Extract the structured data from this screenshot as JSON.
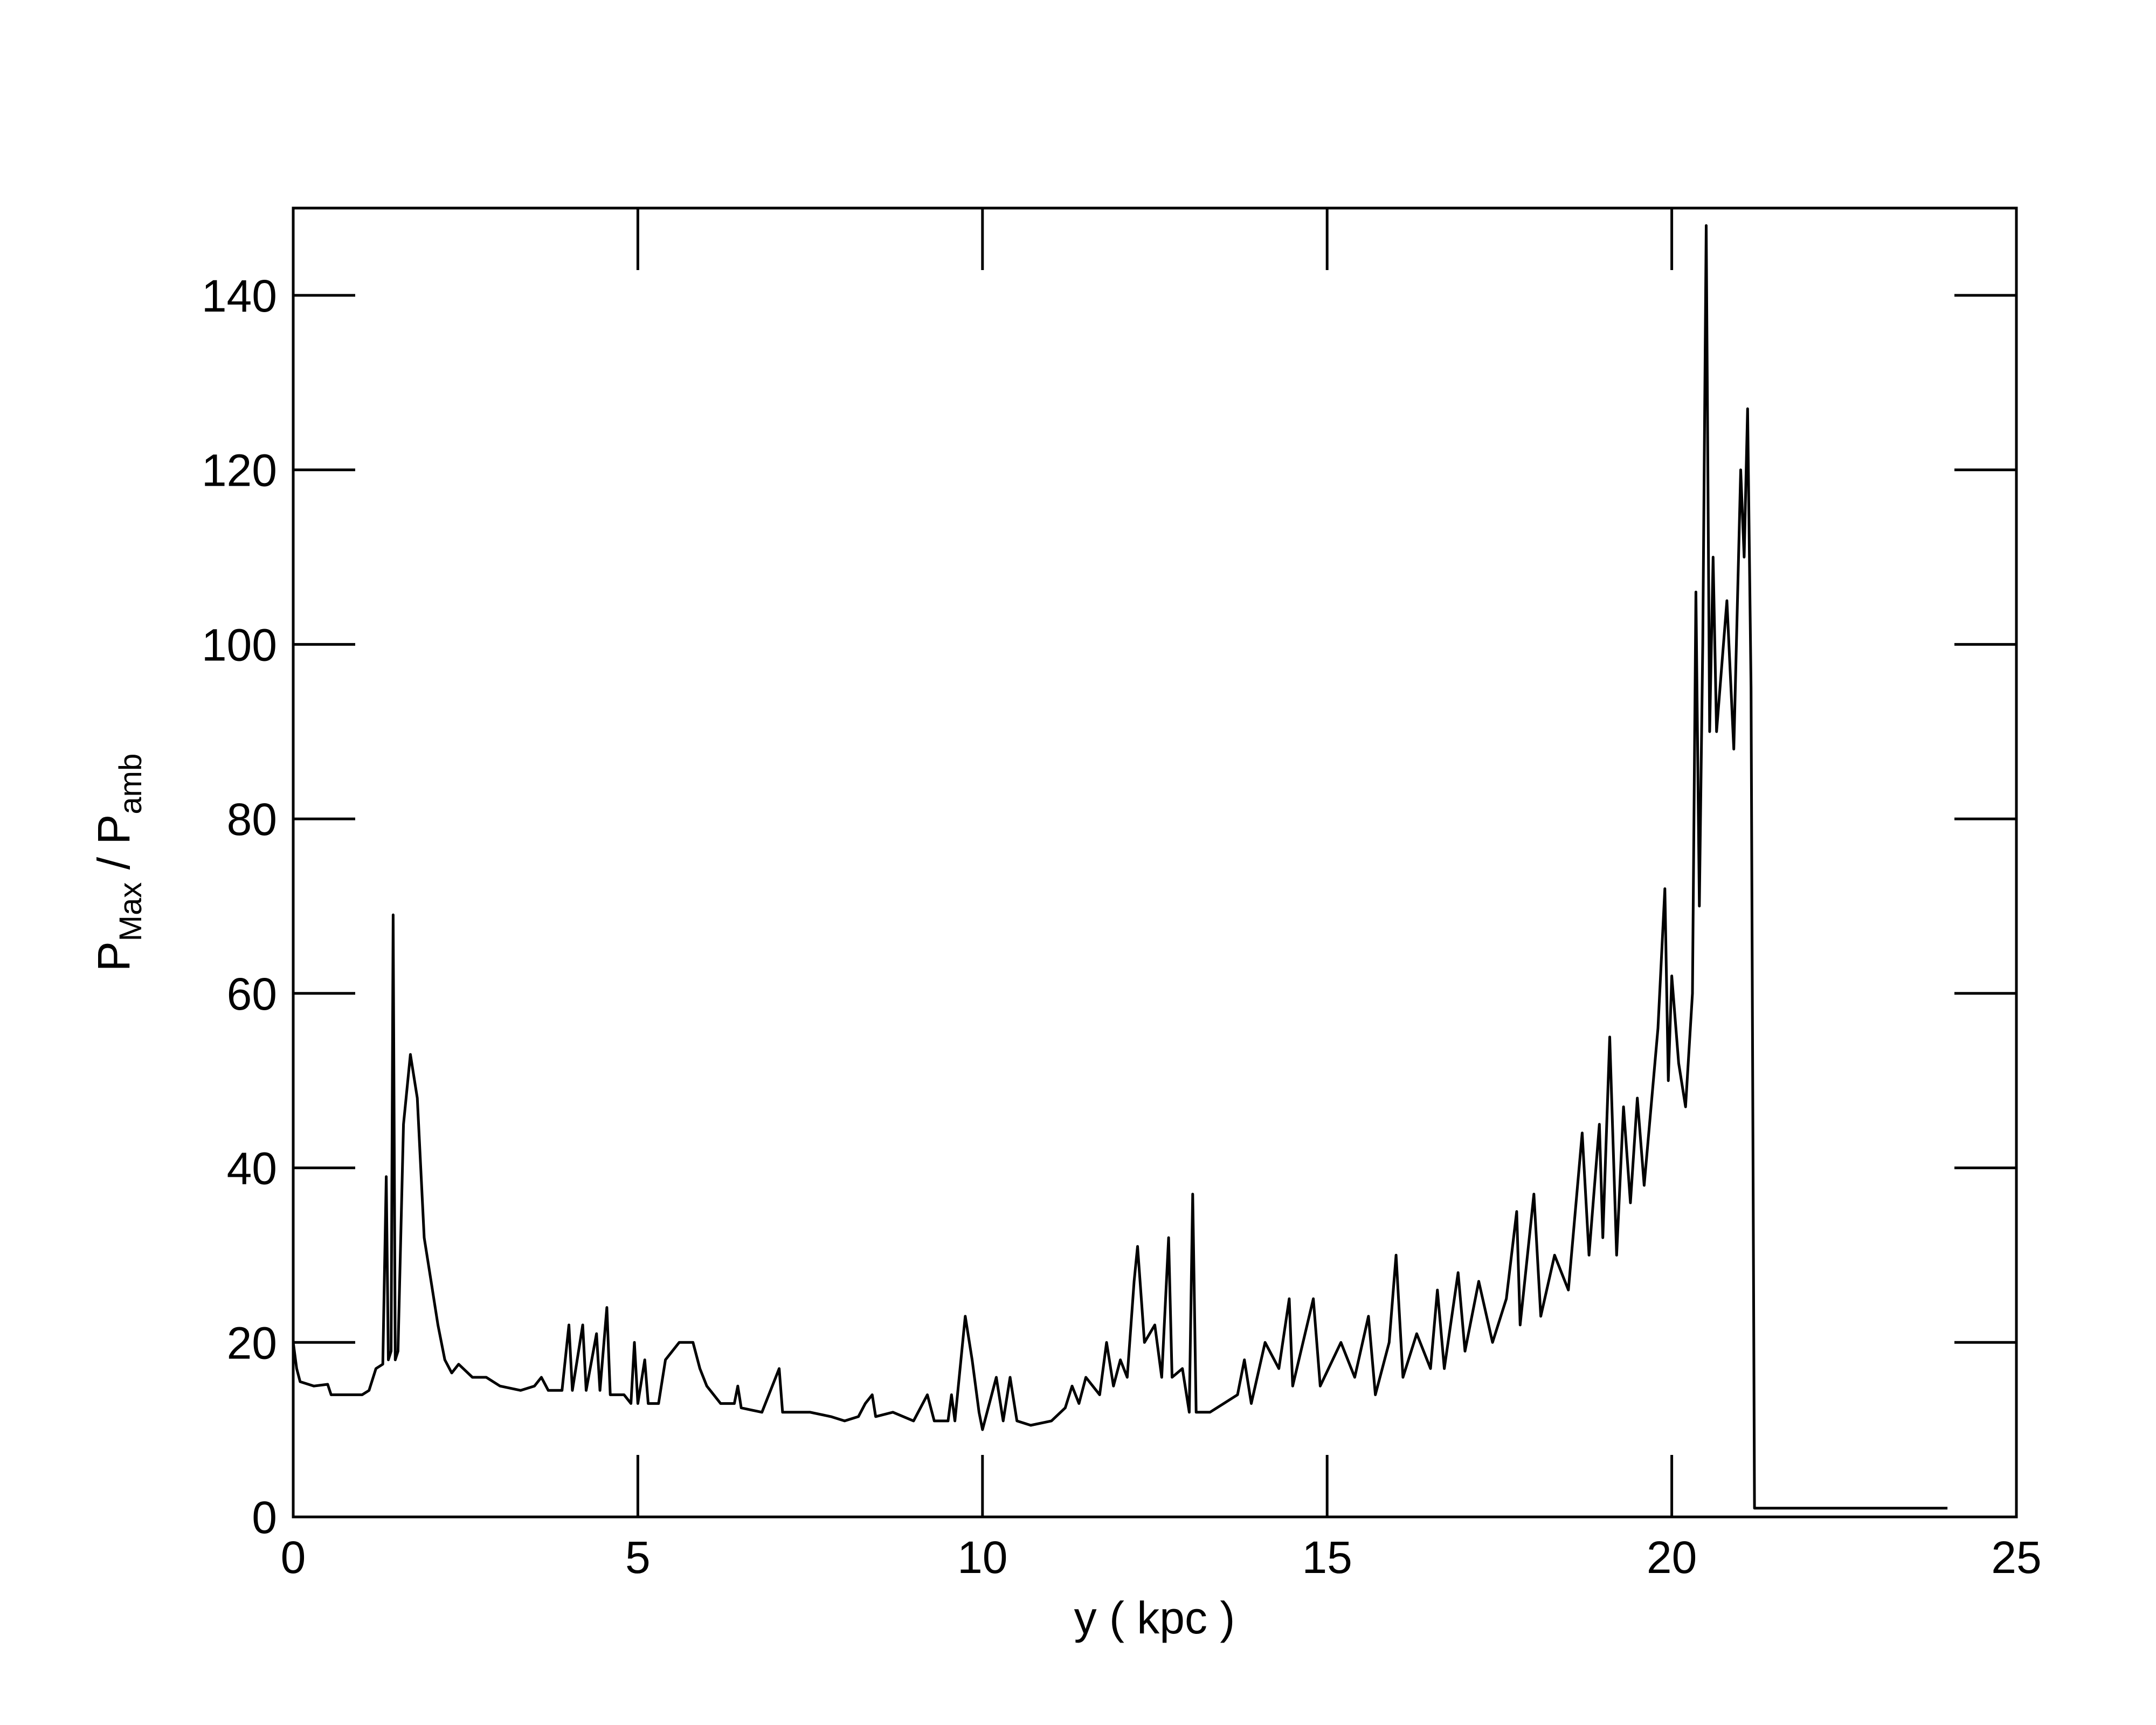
{
  "chart_data": {
    "type": "line",
    "xlabel": "y ( kpc )",
    "ylabel_parts": [
      "P",
      "Max",
      " / P",
      "amb"
    ],
    "xlim": [
      0,
      25
    ],
    "xticks": [
      0,
      5,
      10,
      15,
      20,
      25
    ],
    "ylim": [
      0,
      150
    ],
    "yticks": [
      0,
      20,
      40,
      60,
      80,
      100,
      120,
      140
    ],
    "series": [
      {
        "color": "#000000",
        "x": [
          0,
          0.05,
          0.1,
          0.3,
          0.5,
          0.55,
          0.7,
          1.0,
          1.1,
          1.2,
          1.3,
          1.35,
          1.38,
          1.42,
          1.45,
          1.48,
          1.52,
          1.6,
          1.7,
          1.8,
          1.9,
          2.0,
          2.1,
          2.2,
          2.3,
          2.4,
          2.6,
          2.8,
          3.0,
          3.3,
          3.5,
          3.6,
          3.7,
          3.9,
          4.0,
          4.05,
          4.2,
          4.25,
          4.4,
          4.45,
          4.55,
          4.6,
          4.8,
          4.9,
          4.95,
          5.0,
          5.1,
          5.15,
          5.3,
          5.4,
          5.6,
          5.8,
          5.9,
          6.0,
          6.2,
          6.4,
          6.45,
          6.5,
          6.8,
          7.05,
          7.1,
          7.5,
          7.8,
          8.0,
          8.2,
          8.3,
          8.4,
          8.45,
          8.7,
          9.0,
          9.2,
          9.3,
          9.5,
          9.55,
          9.6,
          9.7,
          9.75,
          9.85,
          9.95,
          10.0,
          10.2,
          10.3,
          10.4,
          10.5,
          10.7,
          11.0,
          11.2,
          11.3,
          11.4,
          11.5,
          11.7,
          11.8,
          11.9,
          12.0,
          12.1,
          12.2,
          12.25,
          12.35,
          12.5,
          12.6,
          12.7,
          12.75,
          12.9,
          13.0,
          13.05,
          13.1,
          13.3,
          13.5,
          13.7,
          13.8,
          13.9,
          14.1,
          14.3,
          14.45,
          14.5,
          14.8,
          14.9,
          15.2,
          15.4,
          15.6,
          15.7,
          15.9,
          16.0,
          16.1,
          16.3,
          16.5,
          16.6,
          16.7,
          16.9,
          17.0,
          17.2,
          17.4,
          17.6,
          17.75,
          17.8,
          18.0,
          18.1,
          18.3,
          18.5,
          18.7,
          18.8,
          18.95,
          19.0,
          19.1,
          19.2,
          19.3,
          19.4,
          19.5,
          19.6,
          19.8,
          19.9,
          19.95,
          20.0,
          20.1,
          20.2,
          20.3,
          20.35,
          20.4,
          20.45,
          20.5,
          20.55,
          20.6,
          20.65,
          20.8,
          20.9,
          21.0,
          21.05,
          21.1,
          21.15,
          21.2,
          24
        ],
        "values": [
          20,
          17,
          15.5,
          15,
          15.2,
          14,
          14,
          14,
          14.5,
          17,
          17.5,
          39,
          18,
          19,
          69,
          18,
          19,
          45,
          53,
          48,
          32,
          27,
          22,
          18,
          16.5,
          17.5,
          16,
          16,
          15,
          14.5,
          15,
          16,
          14.5,
          14.5,
          22,
          14.5,
          22,
          14.5,
          21,
          14.5,
          24,
          14,
          14,
          13,
          20,
          13,
          18,
          13,
          13,
          18,
          20,
          20,
          17,
          15,
          13,
          13,
          15,
          12.5,
          12,
          17,
          12,
          12,
          11.5,
          11,
          11.5,
          13,
          14,
          11.5,
          12,
          11,
          14,
          11,
          11,
          14,
          11,
          19,
          23,
          18,
          12,
          10,
          16,
          11,
          16,
          11,
          10.5,
          11,
          12.5,
          15,
          13,
          16,
          14,
          20,
          15,
          18,
          16,
          27,
          31,
          20,
          22,
          16,
          32,
          16,
          17,
          12,
          37,
          12,
          12,
          13,
          14,
          18,
          13,
          20,
          17,
          25,
          15,
          25,
          15,
          20,
          16,
          23,
          14,
          20,
          30,
          16,
          21,
          17,
          26,
          17,
          28,
          19,
          27,
          20,
          25,
          35,
          22,
          37,
          23,
          30,
          26,
          44,
          30,
          45,
          32,
          55,
          30,
          47,
          36,
          48,
          38,
          56,
          72,
          50,
          62,
          52,
          47,
          60,
          106,
          70,
          100,
          148,
          90,
          110,
          90,
          105,
          88,
          120,
          110,
          127,
          95,
          1,
          1
        ]
      }
    ]
  }
}
